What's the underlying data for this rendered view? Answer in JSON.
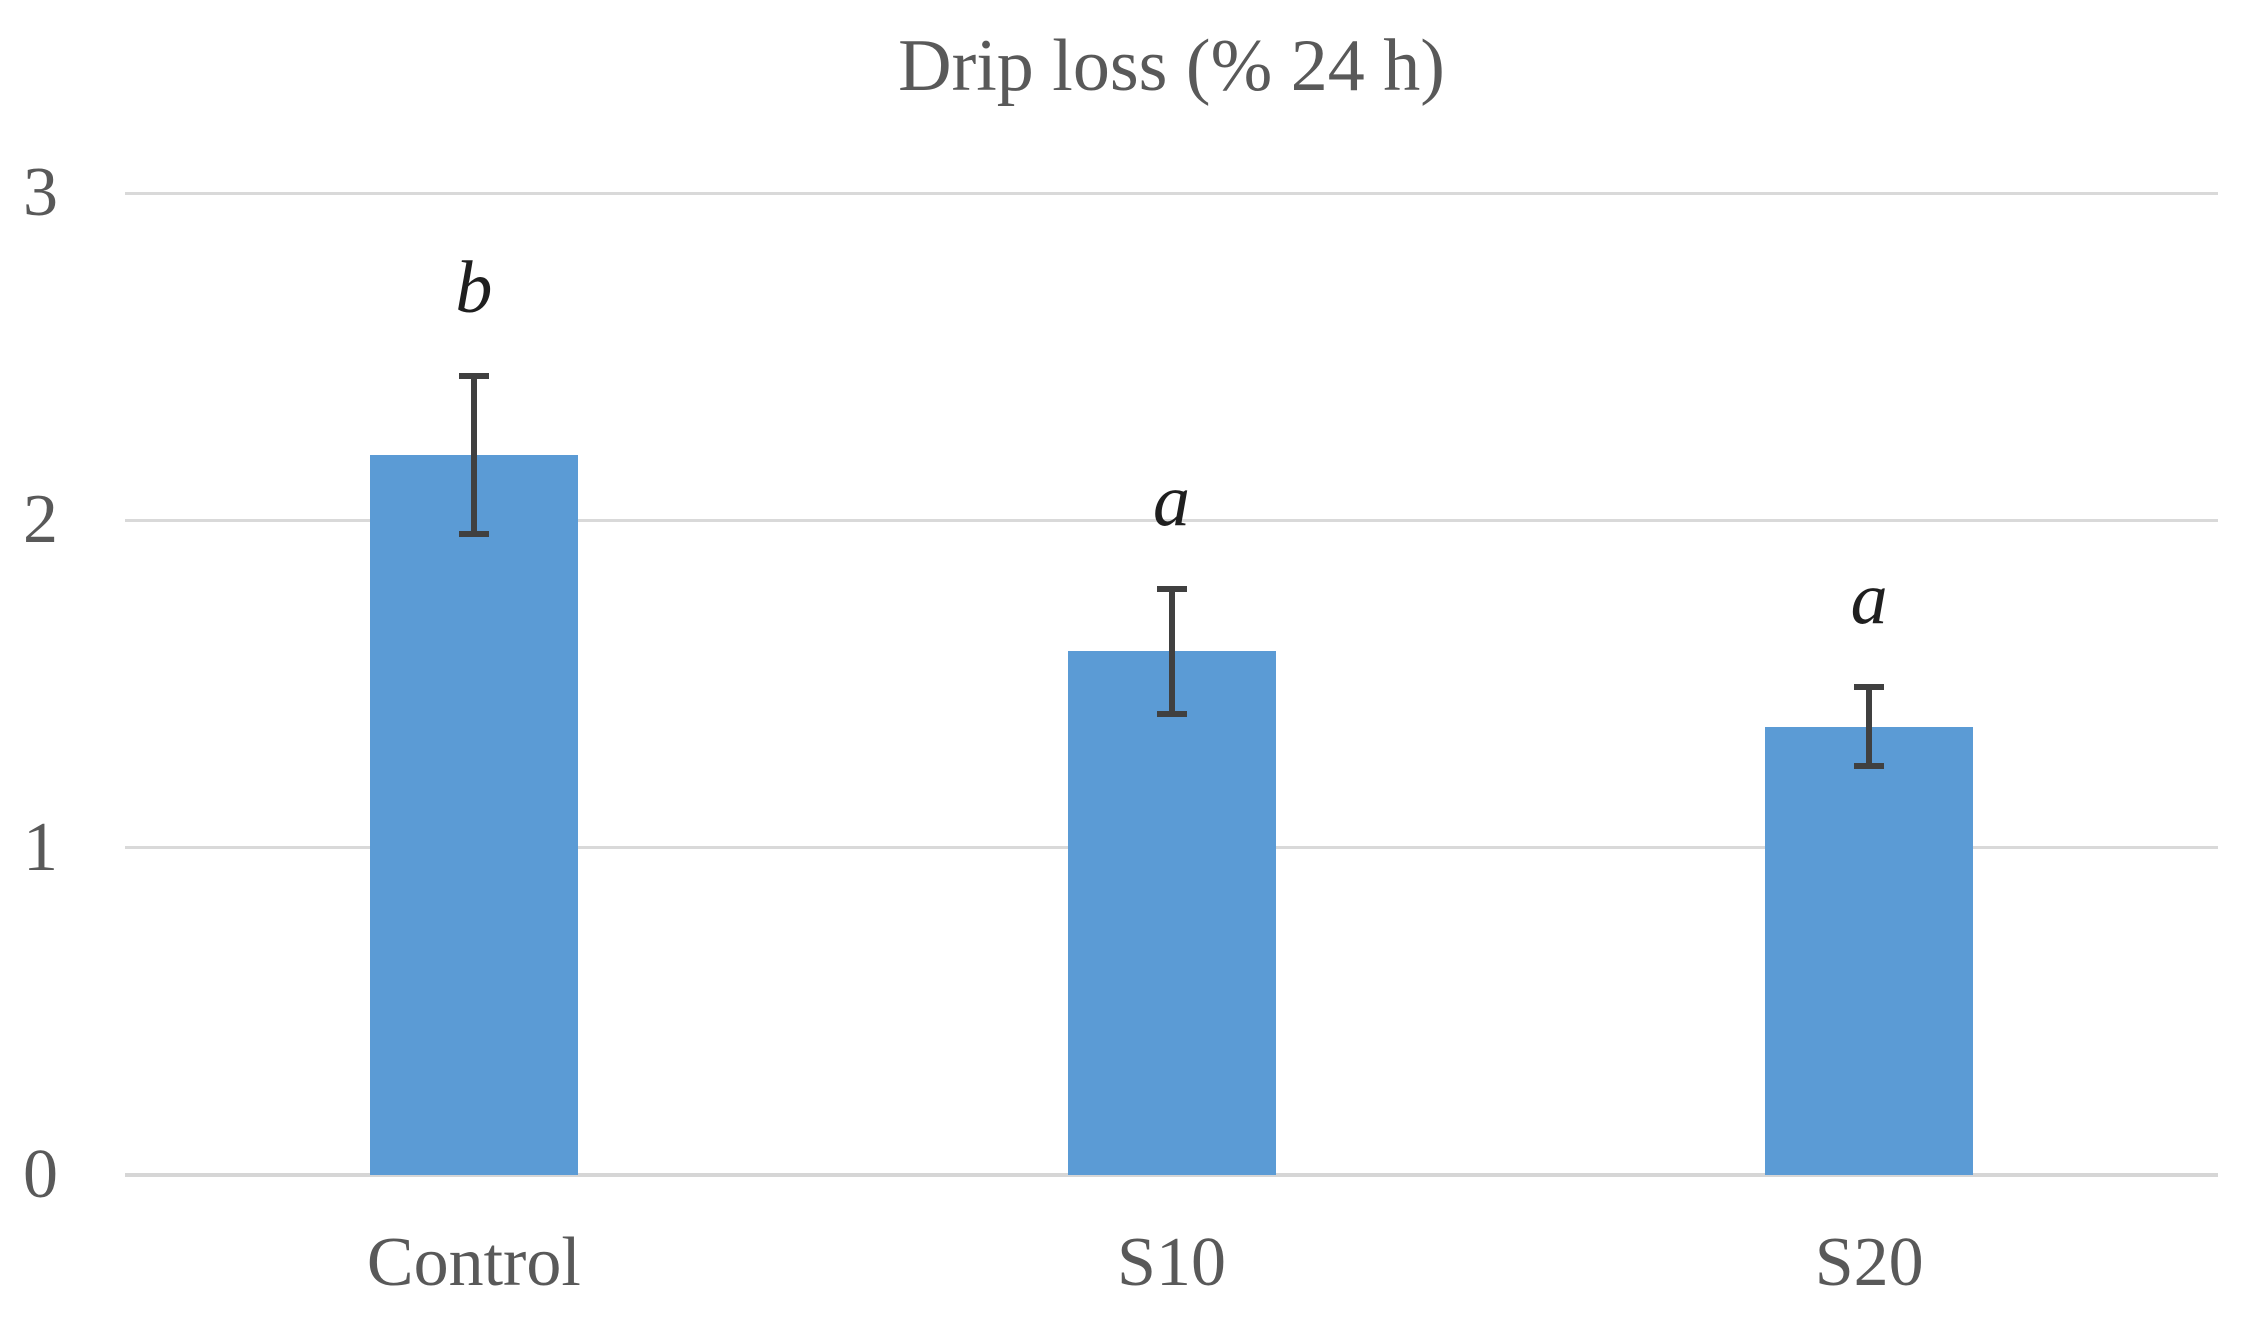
{
  "chart_data": {
    "type": "bar",
    "title": "Drip loss (% 24 h)",
    "categories": [
      "Control",
      "S10",
      "S20"
    ],
    "values": [
      2.2,
      1.6,
      1.37
    ],
    "error_bars": [
      0.25,
      0.2,
      0.13
    ],
    "sig_letters": [
      "b",
      "a",
      "a"
    ],
    "yticks": [
      "0",
      "1",
      "2",
      "3"
    ],
    "ylim": [
      0,
      3
    ],
    "xlabel": "",
    "ylabel": "",
    "legend": "none",
    "grid": "horizontal",
    "colors": {
      "bar_fill": "#5B9BD5",
      "gridline": "#D9D9D9",
      "axis_line": "#D6D6D6",
      "error_bar": "#404040",
      "axis_text": "#595959",
      "letter_text": "#1f1f1f",
      "background": "#ffffff"
    }
  }
}
